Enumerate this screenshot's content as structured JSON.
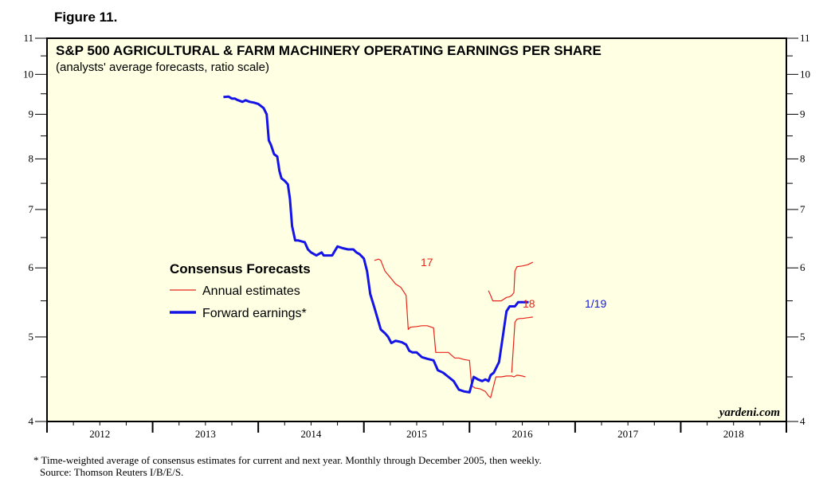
{
  "figure_label": "Figure 11.",
  "chart_data": {
    "type": "line",
    "title": "S&P 500 AGRICULTURAL & FARM MACHINERY OPERATING EARNINGS PER SHARE",
    "subtitle": "(analysts' average forecasts, ratio scale)",
    "y_scale": "log",
    "ylim": [
      4,
      11
    ],
    "y_ticks": [
      4,
      5,
      6,
      7,
      8,
      9,
      10,
      11
    ],
    "xlim": [
      2012,
      2019
    ],
    "x_tick_labels": [
      "2012",
      "2013",
      "2014",
      "2015",
      "2016",
      "2017",
      "2018"
    ],
    "legend_title": "Consensus Forecasts",
    "series": [
      {
        "name": "Annual estimates",
        "color": "#e8241a",
        "segments": [
          {
            "label": "17",
            "x": [
              2015.1,
              2015.14,
              2015.16,
              2015.2,
              2015.25,
              2015.3,
              2015.35,
              2015.4,
              2015.42,
              2015.44,
              2015.5,
              2015.55,
              2015.6,
              2015.66,
              2015.68,
              2015.7,
              2015.75,
              2015.8,
              2015.86,
              2015.9,
              2015.95,
              2016.0,
              2016.02,
              2016.05,
              2016.1,
              2016.15,
              2016.18,
              2016.2,
              2016.25,
              2016.3,
              2016.35,
              2016.38,
              2016.4,
              2016.42,
              2016.45,
              2016.5,
              2016.53
            ],
            "y": [
              6.12,
              6.14,
              6.12,
              5.95,
              5.85,
              5.75,
              5.7,
              5.58,
              5.1,
              5.13,
              5.14,
              5.15,
              5.15,
              5.12,
              4.8,
              4.8,
              4.8,
              4.8,
              4.73,
              4.73,
              4.71,
              4.7,
              4.4,
              4.37,
              4.36,
              4.33,
              4.28,
              4.26,
              4.5,
              4.5,
              4.51,
              4.51,
              4.51,
              4.5,
              4.52,
              4.51,
              4.5
            ]
          },
          {
            "label": "18",
            "x": [
              2016.18,
              2016.2,
              2016.22,
              2016.3,
              2016.35,
              2016.38,
              2016.4,
              2016.42,
              2016.43,
              2016.45,
              2016.5,
              2016.55,
              2016.6
            ],
            "y": [
              5.65,
              5.58,
              5.5,
              5.5,
              5.55,
              5.56,
              5.58,
              5.62,
              5.95,
              6.02,
              6.03,
              6.05,
              6.09
            ]
          },
          {
            "label": "",
            "x": [
              2016.4,
              2016.43,
              2016.45,
              2016.48,
              2016.5,
              2016.55,
              2016.6
            ],
            "y": [
              4.55,
              5.2,
              5.24,
              5.25,
              5.25,
              5.26,
              5.27
            ]
          }
        ]
      },
      {
        "name": "Forward earnings*",
        "color": "#1414e6",
        "end_label": "1/19",
        "x": [
          2013.67,
          2013.72,
          2013.75,
          2013.78,
          2013.8,
          2013.82,
          2013.85,
          2013.88,
          2013.92,
          2013.96,
          2014.0,
          2014.05,
          2014.08,
          2014.1,
          2014.12,
          2014.15,
          2014.18,
          2014.2,
          2014.22,
          2014.25,
          2014.28,
          2014.3,
          2014.32,
          2014.35,
          2014.38,
          2014.4,
          2014.42,
          2014.44,
          2014.47,
          2014.5,
          2014.55,
          2014.6,
          2014.62,
          2014.65,
          2014.7,
          2014.75,
          2014.8,
          2014.85,
          2014.9,
          2014.93,
          2014.96,
          2015.0,
          2015.03,
          2015.06,
          2015.1,
          2015.13,
          2015.16,
          2015.2,
          2015.23,
          2015.26,
          2015.3,
          2015.33,
          2015.36,
          2015.4,
          2015.43,
          2015.46,
          2015.5,
          2015.55,
          2015.6,
          2015.66,
          2015.7,
          2015.75,
          2015.8,
          2015.85,
          2015.9,
          2015.95,
          2016.0,
          2016.04,
          2016.08,
          2016.12,
          2016.15,
          2016.18,
          2016.2,
          2016.23,
          2016.28,
          2016.32,
          2016.35,
          2016.38,
          2016.4,
          2016.43,
          2016.46,
          2016.5,
          2016.53,
          2016.56
        ],
        "y": [
          9.42,
          9.43,
          9.38,
          9.38,
          9.35,
          9.33,
          9.3,
          9.34,
          9.3,
          9.28,
          9.25,
          9.15,
          9.0,
          8.4,
          8.3,
          8.1,
          8.05,
          7.75,
          7.6,
          7.55,
          7.48,
          7.2,
          6.7,
          6.45,
          6.45,
          6.44,
          6.43,
          6.42,
          6.3,
          6.25,
          6.2,
          6.25,
          6.2,
          6.2,
          6.2,
          6.35,
          6.32,
          6.3,
          6.3,
          6.25,
          6.22,
          6.15,
          5.95,
          5.6,
          5.4,
          5.25,
          5.1,
          5.05,
          5.0,
          4.92,
          4.95,
          4.94,
          4.93,
          4.9,
          4.82,
          4.8,
          4.8,
          4.74,
          4.72,
          4.7,
          4.58,
          4.55,
          4.5,
          4.45,
          4.35,
          4.33,
          4.32,
          4.5,
          4.47,
          4.45,
          4.47,
          4.45,
          4.52,
          4.55,
          4.68,
          5.05,
          5.35,
          5.42,
          5.42,
          5.42,
          5.48,
          5.48,
          5.48,
          5.48
        ]
      }
    ],
    "annotations": [
      "17",
      "18",
      "1/19"
    ]
  },
  "brand": "yardeni.com",
  "footnote": "*  Time-weighted average of consensus estimates for current and next year. Monthly through December 2005, then weekly.",
  "source": "Source: Thomson Reuters I/B/E/S."
}
